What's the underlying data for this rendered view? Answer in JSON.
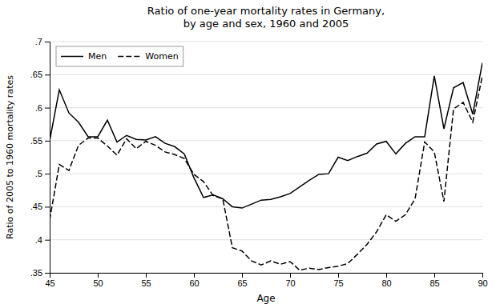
{
  "chart_data": {
    "type": "line",
    "title": "Ratio of one-year mortality rates in Germany,\nby age and sex, 1960 and 2005",
    "x_label": "Age",
    "y_label": "Ratio of 2005 to 1960 mortality rates",
    "x": [
      45,
      46,
      47,
      48,
      49,
      50,
      51,
      52,
      53,
      54,
      55,
      56,
      57,
      58,
      59,
      60,
      61,
      62,
      63,
      64,
      65,
      66,
      67,
      68,
      69,
      70,
      71,
      72,
      73,
      74,
      75,
      76,
      77,
      78,
      79,
      80,
      81,
      82,
      83,
      84,
      85,
      86,
      87,
      88,
      89,
      90
    ],
    "series": [
      {
        "name": "Men",
        "color": "#000000",
        "line_style": "solid",
        "values": [
          0.55,
          0.627,
          0.592,
          0.578,
          0.556,
          0.556,
          0.581,
          0.548,
          0.558,
          0.552,
          0.551,
          0.556,
          0.546,
          0.541,
          0.53,
          0.494,
          0.464,
          0.468,
          0.462,
          0.45,
          0.448,
          0.454,
          0.46,
          0.461,
          0.465,
          0.47,
          0.48,
          0.49,
          0.499,
          0.5,
          0.525,
          0.52,
          0.526,
          0.531,
          0.545,
          0.549,
          0.53,
          0.546,
          0.556,
          0.556,
          0.648,
          0.568,
          0.63,
          0.638,
          0.59,
          0.668
        ]
      },
      {
        "name": "Women",
        "color": "#000000",
        "line_style": "dashed",
        "values": [
          0.43,
          0.514,
          0.505,
          0.543,
          0.554,
          0.554,
          0.542,
          0.528,
          0.553,
          0.538,
          0.549,
          0.543,
          0.533,
          0.529,
          0.523,
          0.499,
          0.488,
          0.467,
          0.462,
          0.388,
          0.383,
          0.368,
          0.362,
          0.368,
          0.363,
          0.367,
          0.354,
          0.357,
          0.355,
          0.358,
          0.36,
          0.364,
          0.378,
          0.393,
          0.412,
          0.438,
          0.428,
          0.438,
          0.462,
          0.548,
          0.533,
          0.458,
          0.598,
          0.608,
          0.578,
          0.648
        ]
      }
    ],
    "xlim": [
      45,
      90
    ],
    "xticks": [
      45,
      50,
      55,
      60,
      65,
      70,
      75,
      80,
      85,
      90
    ],
    "ylim": [
      0.35,
      0.7
    ],
    "yticks": [
      {
        "value": 0.35,
        "label": ".35"
      },
      {
        "value": 0.4,
        "label": ".4"
      },
      {
        "value": 0.45,
        "label": ".45"
      },
      {
        "value": 0.5,
        "label": ".5"
      },
      {
        "value": 0.55,
        "label": ".55"
      },
      {
        "value": 0.6,
        "label": ".6"
      },
      {
        "value": 0.65,
        "label": ".65"
      },
      {
        "value": 0.7,
        "label": ".7"
      }
    ],
    "grid": "y",
    "legend": "upper left"
  }
}
